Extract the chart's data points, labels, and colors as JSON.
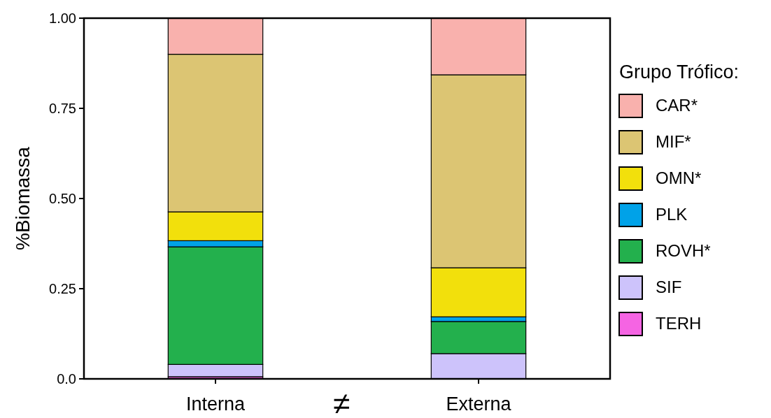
{
  "chart_data": {
    "type": "bar",
    "stacked": true,
    "ylabel": "%Biomassa",
    "legend_title": "Grupo Trófico:",
    "legend": "right",
    "categories": [
      "Interna",
      "Externa"
    ],
    "ylim": [
      0,
      1
    ],
    "yticks": [
      {
        "value": 0,
        "label": "0.0"
      },
      0.25,
      {
        "value": 0.5,
        "label": "0.50"
      },
      0.75,
      {
        "value": 1,
        "label": "1.00"
      }
    ],
    "annotations": [
      "≠"
    ],
    "series": [
      {
        "name": "TERH",
        "color": "#f564e3",
        "values": [
          0.006,
          0
        ]
      },
      {
        "name": "SIF",
        "color": "#cdc3fb",
        "values": [
          0.034,
          0.07
        ]
      },
      {
        "name": "ROVH*",
        "color": "#23b04d",
        "values": [
          0.326,
          0.089
        ]
      },
      {
        "name": "PLK",
        "color": "#00a2e8",
        "values": [
          0.017,
          0.013
        ]
      },
      {
        "name": "OMN*",
        "color": "#f2e00c",
        "values": [
          0.08,
          0.136
        ]
      },
      {
        "name": "MIF*",
        "color": "#dcc573",
        "values": [
          0.437,
          0.535
        ]
      },
      {
        "name": "CAR*",
        "color": "#f9b1ad",
        "values": [
          0.1,
          0.157
        ]
      }
    ]
  }
}
